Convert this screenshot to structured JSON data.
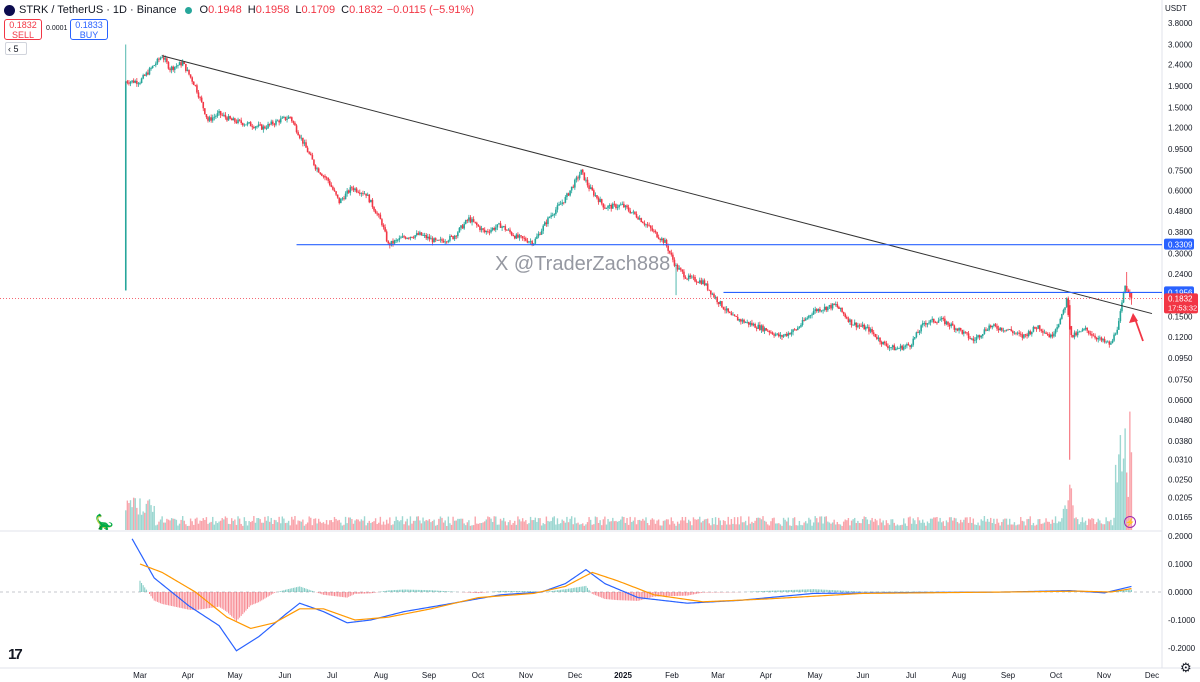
{
  "header": {
    "symbol": "STRK / TetherUS · 1D · Binance",
    "o_label": "O",
    "o_value": "0.1948",
    "h_label": "H",
    "h_value": "0.1958",
    "l_label": "L",
    "l_value": "0.1709",
    "c_label": "C",
    "c_value": "0.1832",
    "change": "−0.0115 (−5.91%)",
    "sell_price": "0.1832",
    "sell_label": "SELL",
    "spread": "0.0001",
    "buy_price": "0.1833",
    "buy_label": "BUY",
    "interval": "5",
    "currency": "USDT"
  },
  "watermark": "X @TraderZach888",
  "colors": {
    "up": "#26a69a",
    "down": "#f23645",
    "hline": "#2962ff",
    "trendline": "#333333",
    "macd": "#2962ff",
    "signal": "#ff9800",
    "arrow": "#f23645",
    "price_tag": "#f23645"
  },
  "chart_data": [
    {
      "type": "candlestick",
      "scale": "log",
      "x_ticks": [
        "Mar",
        "Apr",
        "May",
        "Jun",
        "Jul",
        "Aug",
        "Sep",
        "Oct",
        "Nov",
        "Dec",
        "2025",
        "Feb",
        "Mar",
        "Apr",
        "May",
        "Jun",
        "Jul",
        "Aug",
        "Sep",
        "Oct",
        "Nov",
        "Dec"
      ],
      "y_ticks": [
        "3.8000",
        "3.0000",
        "2.4000",
        "1.9000",
        "1.5000",
        "1.2000",
        "0.9500",
        "0.7500",
        "0.6000",
        "0.4800",
        "0.3800",
        "0.3000",
        "0.2400",
        "0.1500",
        "0.1200",
        "0.0950",
        "0.0750",
        "0.0600",
        "0.0480",
        "0.0380",
        "0.0310",
        "0.0250",
        "0.0205",
        "0.0165"
      ],
      "price_path": [
        [
          "2024-02-20",
          2.0
        ],
        [
          "2024-03-01",
          2.0
        ],
        [
          "2024-03-08",
          2.3
        ],
        [
          "2024-03-15",
          2.65
        ],
        [
          "2024-03-20",
          2.3
        ],
        [
          "2024-03-28",
          2.45
        ],
        [
          "2024-04-05",
          1.9
        ],
        [
          "2024-04-13",
          1.3
        ],
        [
          "2024-04-20",
          1.4
        ],
        [
          "2024-04-28",
          1.3
        ],
        [
          "2024-05-08",
          1.25
        ],
        [
          "2024-05-18",
          1.2
        ],
        [
          "2024-05-28",
          1.3
        ],
        [
          "2024-06-04",
          1.35
        ],
        [
          "2024-06-10",
          1.1
        ],
        [
          "2024-06-20",
          0.78
        ],
        [
          "2024-06-28",
          0.67
        ],
        [
          "2024-07-05",
          0.53
        ],
        [
          "2024-07-13",
          0.62
        ],
        [
          "2024-07-22",
          0.58
        ],
        [
          "2024-08-01",
          0.42
        ],
        [
          "2024-08-05",
          0.33
        ],
        [
          "2024-08-15",
          0.36
        ],
        [
          "2024-08-25",
          0.37
        ],
        [
          "2024-09-05",
          0.34
        ],
        [
          "2024-09-15",
          0.36
        ],
        [
          "2024-09-25",
          0.44
        ],
        [
          "2024-10-05",
          0.38
        ],
        [
          "2024-10-15",
          0.41
        ],
        [
          "2024-10-25",
          0.36
        ],
        [
          "2024-11-05",
          0.34
        ],
        [
          "2024-11-15",
          0.45
        ],
        [
          "2024-11-25",
          0.55
        ],
        [
          "2024-12-05",
          0.74
        ],
        [
          "2024-12-10",
          0.62
        ],
        [
          "2024-12-20",
          0.5
        ],
        [
          "2024-12-31",
          0.51
        ],
        [
          "2025-01-10",
          0.45
        ],
        [
          "2025-01-20",
          0.38
        ],
        [
          "2025-01-27",
          0.34
        ],
        [
          "2025-02-03",
          0.26
        ],
        [
          "2025-02-10",
          0.23
        ],
        [
          "2025-02-20",
          0.22
        ],
        [
          "2025-03-01",
          0.18
        ],
        [
          "2025-03-10",
          0.15
        ],
        [
          "2025-03-20",
          0.14
        ],
        [
          "2025-04-01",
          0.13
        ],
        [
          "2025-04-10",
          0.12
        ],
        [
          "2025-04-20",
          0.13
        ],
        [
          "2025-05-01",
          0.16
        ],
        [
          "2025-05-15",
          0.17
        ],
        [
          "2025-05-25",
          0.14
        ],
        [
          "2025-06-05",
          0.13
        ],
        [
          "2025-06-15",
          0.11
        ],
        [
          "2025-06-22",
          0.105
        ],
        [
          "2025-07-01",
          0.11
        ],
        [
          "2025-07-10",
          0.14
        ],
        [
          "2025-07-20",
          0.145
        ],
        [
          "2025-08-01",
          0.13
        ],
        [
          "2025-08-10",
          0.115
        ],
        [
          "2025-08-20",
          0.135
        ],
        [
          "2025-09-01",
          0.13
        ],
        [
          "2025-09-10",
          0.12
        ],
        [
          "2025-09-20",
          0.135
        ],
        [
          "2025-09-28",
          0.12
        ],
        [
          "2025-10-05",
          0.15
        ],
        [
          "2025-10-08",
          0.18
        ],
        [
          "2025-10-11",
          0.12
        ],
        [
          "2025-10-20",
          0.13
        ],
        [
          "2025-10-30",
          0.115
        ],
        [
          "2025-11-05",
          0.11
        ],
        [
          "2025-11-10",
          0.14
        ],
        [
          "2025-11-14",
          0.21
        ],
        [
          "2025-11-16",
          0.2
        ],
        [
          "2025-11-18",
          0.1832
        ]
      ],
      "trendline": {
        "from": [
          "2024-03-15",
          2.65
        ],
        "to": [
          "2025-12-01",
          0.155
        ]
      },
      "horizontal_levels": [
        {
          "value": 0.3309,
          "label": "0.3309",
          "from": "2024-06-08"
        },
        {
          "value": 0.1956,
          "label": "0.1956",
          "from": "2025-03-05"
        }
      ],
      "last_price": {
        "value": 0.1832,
        "label": "0.1832",
        "countdown": "17:53:32"
      }
    },
    {
      "type": "histogram",
      "name": "volume",
      "note": "relative volume, spikes early Mar 2024, Oct 2025 and Nov 2025"
    },
    {
      "type": "line",
      "name": "macd",
      "y_ticks": [
        "0.2000",
        "0.1000",
        "0.0000",
        "-0.1000",
        "-0.2000"
      ],
      "macd_path": [
        [
          "2024-02-25",
          0.19
        ],
        [
          "2024-03-10",
          0.05
        ],
        [
          "2024-04-01",
          -0.05
        ],
        [
          "2024-04-20",
          -0.12
        ],
        [
          "2024-05-01",
          -0.21
        ],
        [
          "2024-05-15",
          -0.16
        ],
        [
          "2024-06-01",
          -0.08
        ],
        [
          "2024-06-10",
          -0.04
        ],
        [
          "2024-06-25",
          -0.07
        ],
        [
          "2024-07-10",
          -0.11
        ],
        [
          "2024-07-25",
          -0.1
        ],
        [
          "2024-08-15",
          -0.07
        ],
        [
          "2024-09-15",
          -0.04
        ],
        [
          "2024-10-15",
          -0.01
        ],
        [
          "2024-11-10",
          0.0
        ],
        [
          "2024-11-25",
          0.03
        ],
        [
          "2024-12-08",
          0.08
        ],
        [
          "2024-12-20",
          0.03
        ],
        [
          "2025-01-10",
          -0.02
        ],
        [
          "2025-02-10",
          -0.04
        ],
        [
          "2025-03-15",
          -0.03
        ],
        [
          "2025-05-01",
          -0.005
        ],
        [
          "2025-07-01",
          -0.002
        ],
        [
          "2025-09-01",
          0.0
        ],
        [
          "2025-10-10",
          0.005
        ],
        [
          "2025-11-01",
          -0.003
        ],
        [
          "2025-11-18",
          0.02
        ]
      ],
      "signal_path": [
        [
          "2024-03-01",
          0.1
        ],
        [
          "2024-03-15",
          0.07
        ],
        [
          "2024-04-05",
          0.0
        ],
        [
          "2024-04-25",
          -0.09
        ],
        [
          "2024-05-10",
          -0.13
        ],
        [
          "2024-05-25",
          -0.11
        ],
        [
          "2024-06-10",
          -0.06
        ],
        [
          "2024-06-25",
          -0.06
        ],
        [
          "2024-07-15",
          -0.1
        ],
        [
          "2024-08-05",
          -0.09
        ],
        [
          "2024-09-01",
          -0.06
        ],
        [
          "2024-10-01",
          -0.02
        ],
        [
          "2024-11-05",
          -0.005
        ],
        [
          "2024-11-25",
          0.02
        ],
        [
          "2024-12-12",
          0.07
        ],
        [
          "2024-12-28",
          0.04
        ],
        [
          "2025-01-20",
          -0.01
        ],
        [
          "2025-02-20",
          -0.035
        ],
        [
          "2025-04-01",
          -0.025
        ],
        [
          "2025-06-01",
          -0.005
        ],
        [
          "2025-09-01",
          0.0
        ],
        [
          "2025-10-15",
          0.003
        ],
        [
          "2025-11-05",
          0.0
        ],
        [
          "2025-11-18",
          0.012
        ]
      ]
    }
  ]
}
